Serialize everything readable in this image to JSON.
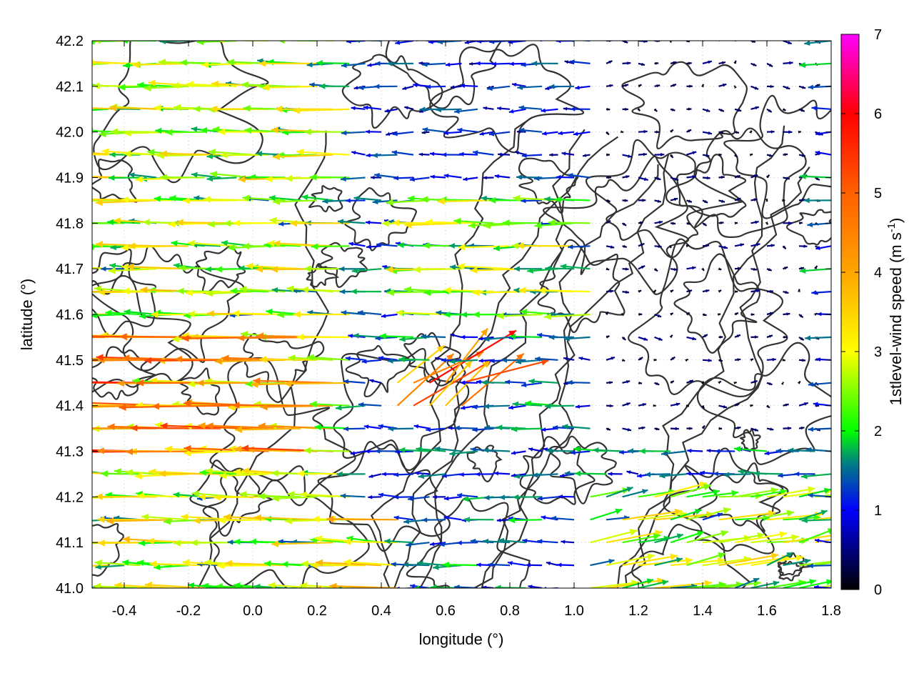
{
  "chart_data": {
    "type": "vector field with contours",
    "xlabel": "longitude (°)",
    "ylabel": "latitude (°)",
    "xlim": [
      -0.5,
      1.8
    ],
    "ylim": [
      41.0,
      42.2
    ],
    "xticks": [
      {
        "value": -0.4,
        "label": "-0.4"
      },
      {
        "value": -0.2,
        "label": "-0.2"
      },
      {
        "value": 0.0,
        "label": "0.0"
      },
      {
        "value": 0.2,
        "label": "0.2"
      },
      {
        "value": 0.4,
        "label": "0.4"
      },
      {
        "value": 0.6,
        "label": "0.6"
      },
      {
        "value": 0.8,
        "label": "0.8"
      },
      {
        "value": 1.0,
        "label": "1.0"
      },
      {
        "value": 1.2,
        "label": "1.2"
      },
      {
        "value": 1.4,
        "label": "1.4"
      },
      {
        "value": 1.6,
        "label": "1.6"
      },
      {
        "value": 1.8,
        "label": "1.8"
      }
    ],
    "yticks": [
      {
        "value": 41.0,
        "label": "41.0"
      },
      {
        "value": 41.1,
        "label": "41.1"
      },
      {
        "value": 41.2,
        "label": "41.2"
      },
      {
        "value": 41.3,
        "label": "41.3"
      },
      {
        "value": 41.4,
        "label": "41.4"
      },
      {
        "value": 41.5,
        "label": "41.5"
      },
      {
        "value": 41.6,
        "label": "41.6"
      },
      {
        "value": 41.7,
        "label": "41.7"
      },
      {
        "value": 41.8,
        "label": "41.8"
      },
      {
        "value": 41.9,
        "label": "41.9"
      },
      {
        "value": 42.0,
        "label": "42.0"
      },
      {
        "value": 42.1,
        "label": "42.1"
      },
      {
        "value": 42.2,
        "label": "42.2"
      }
    ],
    "grid": true,
    "colorbar": {
      "label": "1stlevel-wind speed (m s",
      "label_sup": "-1",
      "label_end": ")",
      "range": [
        0,
        7
      ],
      "ticks": [
        {
          "value": 0,
          "label": "0"
        },
        {
          "value": 1,
          "label": "1"
        },
        {
          "value": 2,
          "label": "2"
        },
        {
          "value": 3,
          "label": "3"
        },
        {
          "value": 4,
          "label": "4"
        },
        {
          "value": 5,
          "label": "5"
        },
        {
          "value": 6,
          "label": "6"
        },
        {
          "value": 7,
          "label": "7"
        }
      ],
      "stops": [
        {
          "value": 0,
          "color": "#000000"
        },
        {
          "value": 1,
          "color": "#0000ff"
        },
        {
          "value": 1.6,
          "color": "#008080"
        },
        {
          "value": 2,
          "color": "#00ff00"
        },
        {
          "value": 3,
          "color": "#ffff00"
        },
        {
          "value": 4,
          "color": "#ffa500"
        },
        {
          "value": 5,
          "color": "#ff6000"
        },
        {
          "value": 6,
          "color": "#ff0000"
        },
        {
          "value": 7,
          "color": "#ff00ff"
        }
      ]
    },
    "contour_color": "#333333",
    "wind_regions": [
      {
        "lon": [
          -0.5,
          0.25
        ],
        "lat": [
          41.25,
          41.55
        ],
        "u": -4.0,
        "v": 0.05
      },
      {
        "lon": [
          -0.5,
          0.3
        ],
        "lat": [
          41.0,
          42.2
        ],
        "u": -2.6,
        "v": 0.05
      },
      {
        "lon": [
          0.0,
          0.45
        ],
        "lat": [
          41.0,
          41.15
        ],
        "u": -3.0,
        "v": 0.1
      },
      {
        "lon": [
          0.4,
          0.65
        ],
        "lat": [
          41.35,
          41.45
        ],
        "u": 3.8,
        "v": 2.2
      },
      {
        "lon": [
          0.5,
          1.1
        ],
        "lat": [
          41.55,
          41.85
        ],
        "u": -2.3,
        "v": 0.0
      },
      {
        "lon": [
          1.05,
          1.8
        ],
        "lat": [
          41.0,
          41.2
        ],
        "u": 2.4,
        "v": 0.45
      },
      {
        "lon": [
          1.1,
          1.8
        ],
        "lat": [
          41.3,
          42.2
        ],
        "u": 0.3,
        "v": 0.0
      },
      {
        "lon": [
          0.3,
          1.1
        ],
        "lat": [
          41.85,
          42.2
        ],
        "u": -1.0,
        "v": 0.0
      },
      {
        "lon": [
          -0.5,
          1.8
        ],
        "lat": [
          41.0,
          42.2
        ],
        "u": -1.3,
        "v": 0.0
      }
    ]
  }
}
